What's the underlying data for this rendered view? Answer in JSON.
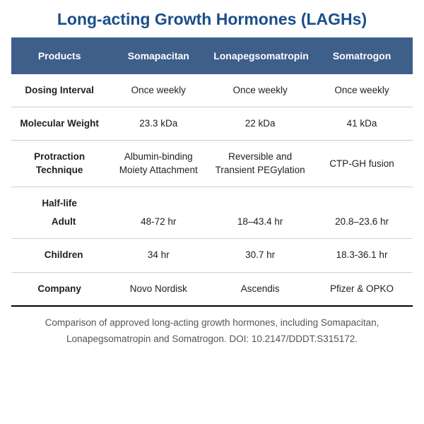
{
  "title": "Long-acting Growth Hormones (LAGHs)",
  "headers": [
    "Products",
    "Somapacitan",
    "Lonapegsomatropin",
    "Somatrogon"
  ],
  "rows": {
    "dosing": {
      "label": "Dosing Interval",
      "c1": "Once weekly",
      "c2": "Once weekly",
      "c3": "Once weekly"
    },
    "mw": {
      "label": "Molecular Weight",
      "c1": "23.3 kDa",
      "c2": "22 kDa",
      "c3": "41 kDa"
    },
    "protraction": {
      "label": "Protraction Technique",
      "c1": "Albumin-binding Moiety Attachment",
      "c2": "Reversible and Transient PEGylation",
      "c3": "CTP-GH fusion"
    },
    "halflife_label": "Half-life",
    "adult": {
      "label": "Adult",
      "c1": "48-72 hr",
      "c2": "18–43.4 hr",
      "c3": "20.8–23.6 hr"
    },
    "children": {
      "label": "Children",
      "c1": "34 hr",
      "c2": "30.7 hr",
      "c3": "18.3-36.1 hr"
    },
    "company": {
      "label": "Company",
      "c1": "Novo Nordisk",
      "c2": "Ascendis",
      "c3": "Pfizer & OPKO"
    }
  },
  "caption": "Comparison of approved long-acting growth hormones, including Somapacitan, Lonapegsomatropin and Somatrogon. DOI:  10.2147/DDDT.S315172.",
  "colors": {
    "title": "#1a4e8a",
    "header_bg": "#3e5f8a",
    "header_fg": "#ffffff",
    "border": "#cfcfcf",
    "caption": "#555555"
  }
}
